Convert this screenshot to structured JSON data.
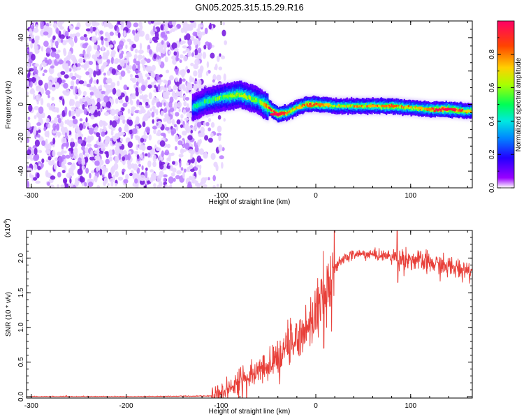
{
  "title": "GN05.2025.315.15.29.R16",
  "top_panel": {
    "xlabel": "Height of straight line (km)",
    "ylabel": "Frequency (Hz)",
    "colorbar_label": "Normalized spectral amplitude"
  },
  "bottom_panel": {
    "xlabel": "Height of straight line (km)",
    "ylabel": "SNR (10 * v/v)",
    "multiplier": "(x10",
    "multiplier_exp": "4",
    "multiplier_close": ")"
  },
  "colors": {
    "snr_line": "#e8403a",
    "noise_color": "#7a1fe0",
    "colormap": [
      "#ffffff",
      "#6600ff",
      "#0000ff",
      "#00c8ff",
      "#00ff66",
      "#c8ff00",
      "#ffd000",
      "#ff5000",
      "#ff0050"
    ]
  },
  "chart_data": [
    {
      "type": "heatmap",
      "title": "GN05.2025.315.15.29.R16",
      "xlabel": "Height of straight line (km)",
      "ylabel": "Frequency (Hz)",
      "xlim": [
        -305,
        165
      ],
      "ylim": [
        -50,
        50
      ],
      "x_ticks": [
        -300,
        -200,
        -100,
        0,
        100
      ],
      "y_ticks": [
        -40,
        -20,
        0,
        20,
        40
      ],
      "colorbar": {
        "label": "Normalized spectral amplitude",
        "range": [
          0,
          1
        ],
        "ticks": [
          0.0,
          0.2,
          0.4,
          0.6,
          0.8
        ]
      },
      "ridge": {
        "x": [
          -130,
          -115,
          -100,
          -90,
          -80,
          -70,
          -60,
          -50,
          -40,
          -30,
          -20,
          -10,
          0,
          20,
          40,
          60,
          80,
          100,
          120,
          140,
          160
        ],
        "frequency": [
          -2,
          2,
          4,
          5,
          6,
          4,
          2,
          -2,
          -6,
          -5,
          -2,
          0,
          0,
          -1,
          -1,
          -1,
          -1,
          -2,
          -3,
          -3,
          -4
        ],
        "amplitude": [
          0.35,
          0.4,
          0.45,
          0.5,
          0.55,
          0.5,
          0.45,
          0.8,
          0.9,
          0.7,
          0.6,
          0.7,
          0.75,
          0.55,
          0.6,
          0.65,
          0.75,
          0.6,
          0.7,
          0.9,
          0.6
        ]
      },
      "noise_region_x": [
        -305,
        -120
      ]
    },
    {
      "type": "line",
      "xlabel": "Height of straight line (km)",
      "ylabel": "SNR (10 * v/v)",
      "y_multiplier": 10000,
      "xlim": [
        -305,
        165
      ],
      "ylim": [
        -0.02,
        2.4
      ],
      "x_ticks": [
        -300,
        -200,
        -100,
        0,
        100
      ],
      "y_ticks": [
        0.0,
        0.5,
        1.0,
        1.5,
        2.0
      ],
      "series": [
        {
          "x": [
            -305,
            -200,
            -110,
            -100,
            -90,
            -80,
            -70,
            -60,
            -50,
            -40,
            -30,
            -20,
            -10,
            0,
            10,
            20,
            30,
            40,
            50,
            60,
            70,
            80,
            90,
            100,
            110,
            120,
            130,
            140,
            150,
            165
          ],
          "values": [
            0.0,
            0.0,
            0.01,
            0.05,
            0.15,
            0.25,
            0.3,
            0.35,
            0.45,
            0.55,
            0.7,
            0.85,
            1.0,
            1.2,
            1.5,
            1.85,
            2.0,
            2.05,
            2.06,
            2.05,
            2.04,
            2.02,
            2.0,
            1.98,
            1.95,
            1.93,
            1.9,
            1.87,
            1.85,
            1.82
          ]
        }
      ]
    }
  ]
}
